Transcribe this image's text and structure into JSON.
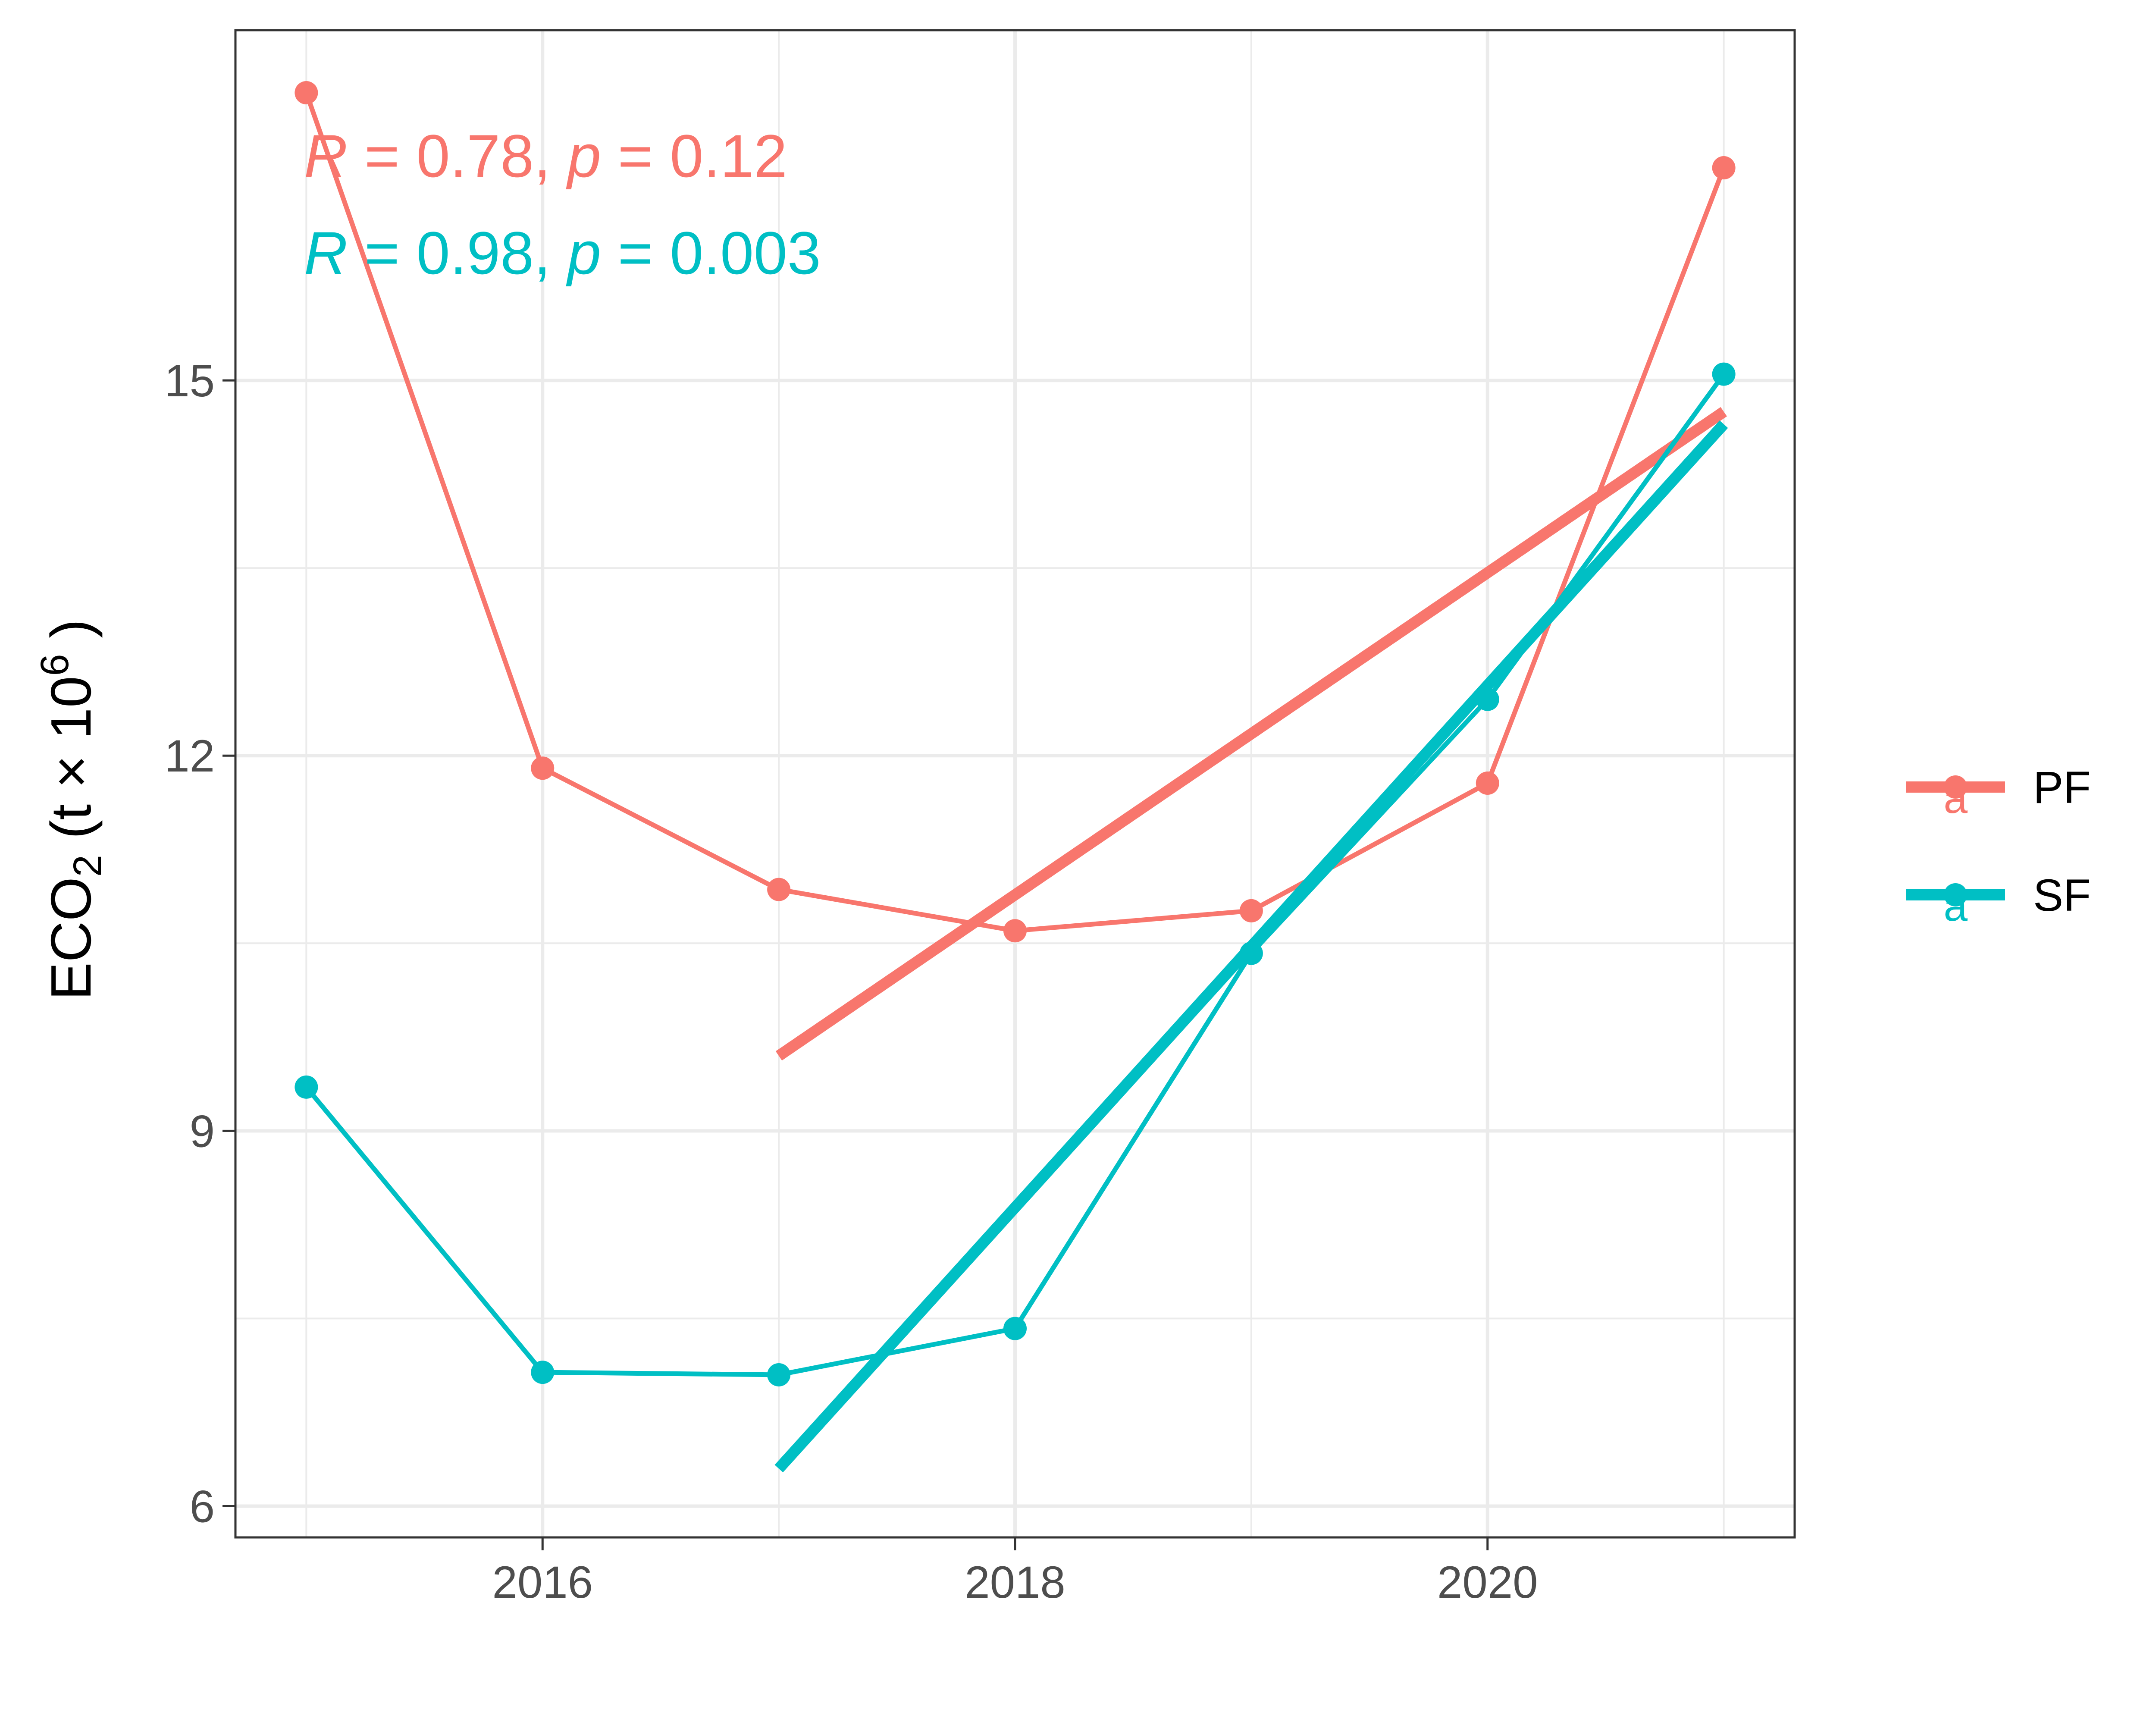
{
  "chart_data": {
    "type": "line",
    "title": "",
    "xlabel": "",
    "ylabel": {
      "base": "ECO",
      "sub": "2",
      "unit_open": " (t × 10",
      "sup": "6",
      "unit_close": " )"
    },
    "xlim": [
      2014.7,
      2021.3
    ],
    "ylim": [
      5.75,
      17.8
    ],
    "x_ticks": [
      2016,
      2018,
      2020
    ],
    "x_tick_labels": [
      "2016",
      "2018",
      "2020"
    ],
    "y_ticks": [
      6,
      9,
      12,
      15
    ],
    "y_tick_labels": [
      "6",
      "9",
      "12",
      "15"
    ],
    "grid": true,
    "legend_position": "right",
    "series": [
      {
        "name": "PF",
        "color": "#F8766D",
        "x": [
          2015,
          2016,
          2017,
          2018,
          2019,
          2020,
          2021
        ],
        "y": [
          17.3,
          11.9,
          10.93,
          10.6,
          10.76,
          11.78,
          16.7
        ],
        "trend": {
          "x": [
            2017,
            2021
          ],
          "y": [
            9.6,
            14.75
          ]
        },
        "annotation": {
          "r_sym": "R",
          "r_text": " = 0.78, ",
          "p_sym": "p",
          "p_text": " = 0.12"
        }
      },
      {
        "name": "SF",
        "color": "#00BFC4",
        "x": [
          2015,
          2016,
          2017,
          2018,
          2019,
          2020,
          2021
        ],
        "y": [
          9.35,
          7.07,
          7.05,
          7.42,
          10.42,
          12.45,
          15.05
        ],
        "trend": {
          "x": [
            2017,
            2021
          ],
          "y": [
            6.3,
            14.65
          ]
        },
        "annotation": {
          "r_sym": "R",
          "r_text": " = 0.98, ",
          "p_sym": "p",
          "p_text": " = 0.003"
        }
      }
    ],
    "legend_key_glyph": "a"
  }
}
